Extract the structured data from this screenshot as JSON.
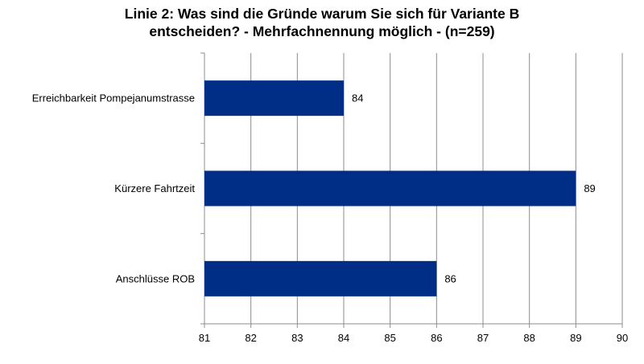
{
  "chart_data": {
    "type": "bar",
    "orientation": "horizontal",
    "title_lines": [
      "Linie 2: Was sind die Gründe warum Sie sich für Variante B",
      "entscheiden? - Mehrfachnennung möglich - (n=259)"
    ],
    "categories": [
      "Erreichbarkeit Pompejanumstrasse",
      "Kürzere Fahrtzeit",
      "Anschlüsse ROB"
    ],
    "values": [
      84,
      89,
      86
    ],
    "data_labels": [
      "84",
      "89",
      "86"
    ],
    "xlim": [
      81,
      90
    ],
    "xticks": [
      "81",
      "82",
      "83",
      "84",
      "85",
      "86",
      "87",
      "88",
      "89",
      "90"
    ],
    "xlabel": "",
    "ylabel": "",
    "grid": "vertical",
    "legend": "none",
    "bar_color": "#002d85",
    "grid_color": "#8c8c8c"
  }
}
